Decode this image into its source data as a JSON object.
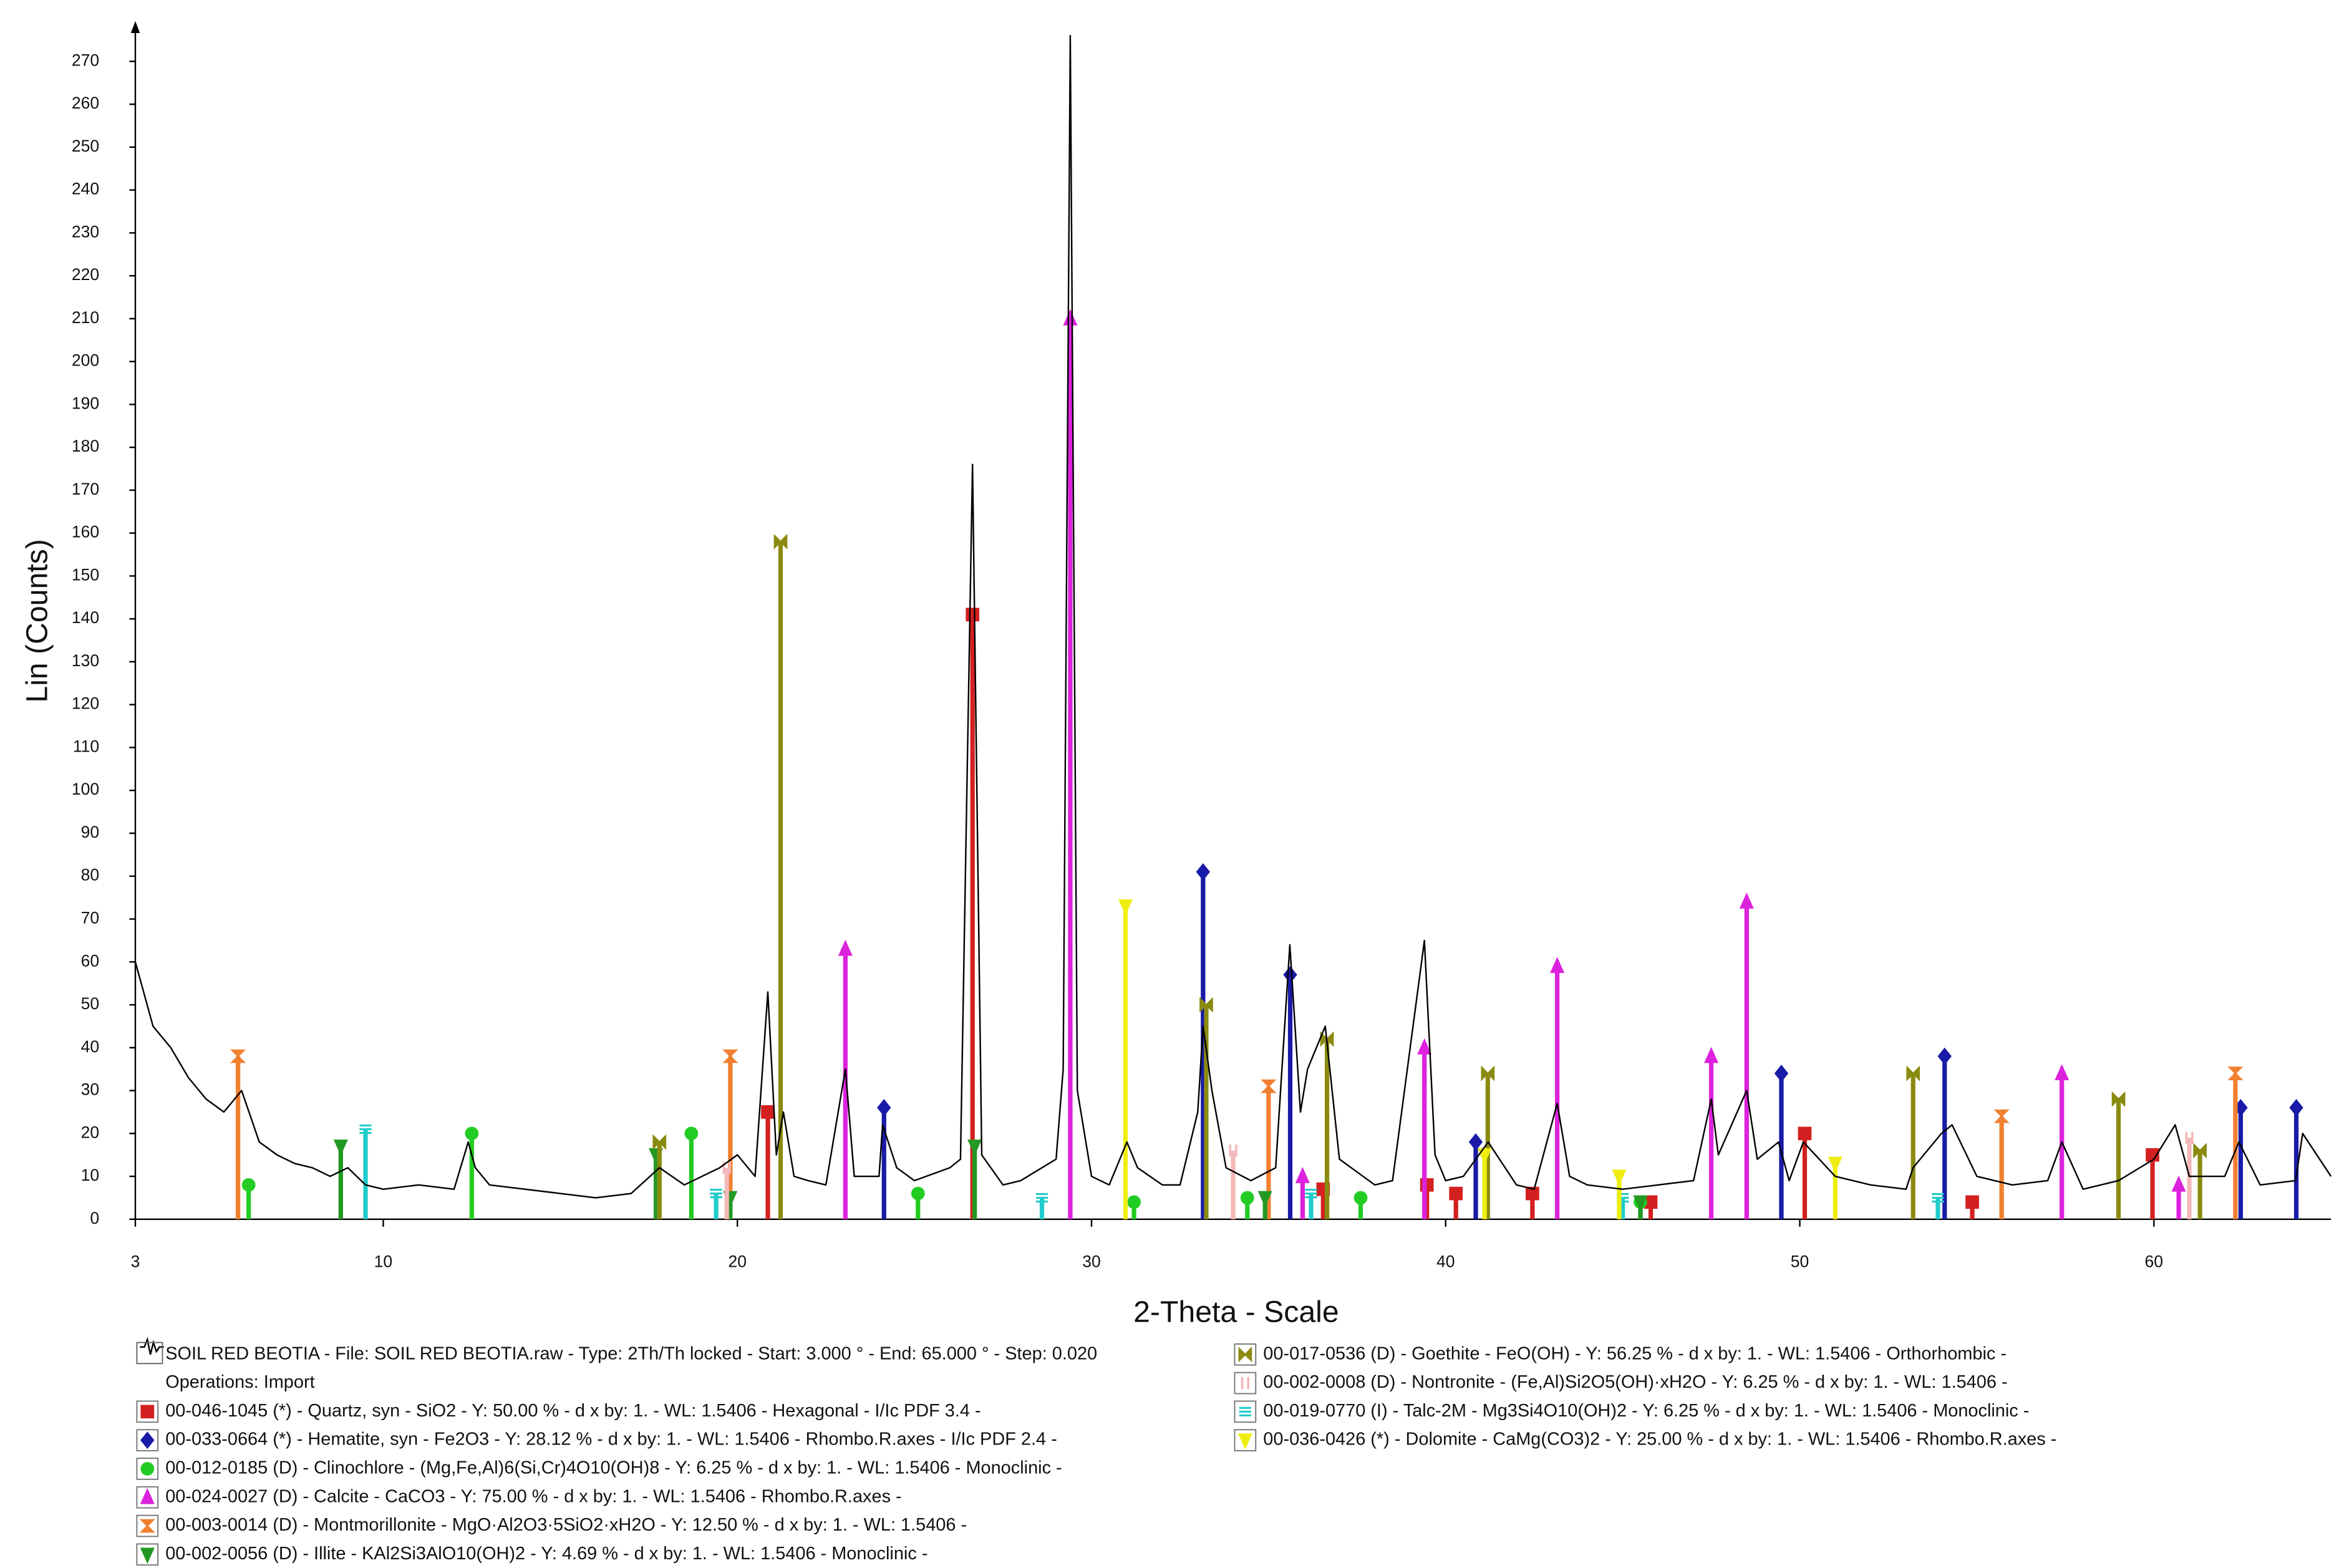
{
  "chart_data": {
    "type": "line",
    "x_label": "2-Theta - Scale",
    "y_label": "Lin (Counts)",
    "xlim": [
      3,
      65
    ],
    "ylim": [
      0,
      278
    ],
    "xticks": [
      3,
      10,
      20,
      30,
      40,
      50,
      60
    ],
    "yticks": [
      0,
      10,
      20,
      30,
      40,
      50,
      60,
      70,
      80,
      90,
      100,
      110,
      120,
      130,
      140,
      150,
      160,
      170,
      180,
      190,
      200,
      210,
      220,
      230,
      240,
      250,
      260,
      270
    ],
    "pattern": {
      "name": "SOIL RED BEOTIA - File: SOIL RED BEOTIA.raw - Type: 2Th/Th locked - Start: 3.000 ° - End: 65.000 ° - Step: 0.020",
      "note": "Operations: Import",
      "color": "#000000",
      "x": [
        3,
        3.5,
        4,
        4.5,
        5,
        5.5,
        6,
        6.5,
        7,
        7.5,
        8,
        8.5,
        9,
        9.5,
        10,
        11,
        12,
        12.4,
        12.6,
        13,
        14,
        15,
        16,
        17,
        17.8,
        18.5,
        19.5,
        20,
        20.5,
        20.86,
        21.1,
        21.3,
        21.6,
        22,
        22.5,
        23.05,
        23.3,
        24,
        24.1,
        24.5,
        25,
        26,
        26.3,
        26.64,
        26.9,
        27.5,
        28,
        29,
        29.2,
        29.4,
        29.6,
        30,
        30.5,
        31,
        31.3,
        32,
        32.5,
        33,
        33.15,
        33.4,
        33.8,
        34.5,
        35.2,
        35.6,
        35.9,
        36.1,
        36.6,
        37,
        38,
        38.5,
        39.4,
        39.7,
        40,
        40.5,
        41.2,
        42,
        42.5,
        43.15,
        43.5,
        44,
        45,
        46,
        47,
        47.5,
        47.7,
        48.5,
        48.8,
        49.4,
        49.7,
        50.1,
        51,
        52,
        53,
        53.2,
        54,
        54.3,
        55,
        56,
        57,
        57.4,
        58,
        59,
        60,
        60.6,
        61,
        62,
        62.4,
        63,
        64,
        64.2,
        65
      ],
      "values": [
        60,
        45,
        40,
        33,
        28,
        25,
        30,
        18,
        15,
        13,
        12,
        10,
        12,
        8,
        7,
        8,
        7,
        18,
        12,
        8,
        7,
        6,
        5,
        6,
        12,
        8,
        12,
        15,
        10,
        53,
        15,
        25,
        10,
        9,
        8,
        35,
        10,
        10,
        22,
        12,
        9,
        12,
        14,
        176,
        15,
        8,
        9,
        14,
        35,
        276,
        30,
        10,
        8,
        18,
        12,
        8,
        8,
        25,
        45,
        30,
        12,
        9,
        12,
        64,
        25,
        35,
        45,
        14,
        8,
        9,
        65,
        15,
        9,
        10,
        18,
        8,
        7,
        27,
        10,
        8,
        7,
        8,
        9,
        28,
        15,
        30,
        14,
        18,
        9,
        18,
        10,
        8,
        7,
        12,
        20,
        22,
        10,
        8,
        9,
        18,
        7,
        9,
        14,
        22,
        10,
        10,
        18,
        8,
        9,
        20,
        10
      ]
    },
    "series": [
      {
        "name": "00-046-1045 (*) - Quartz, syn - SiO2 - Y: 50.00 % - d x by: 1. - WL: 1.5406 - Hexagonal - I/Ic PDF 3.4 -",
        "color": "#d42020",
        "marker": "square",
        "x": [
          20.86,
          26.64,
          36.54,
          39.47,
          40.29,
          42.45,
          45.79,
          50.14,
          54.87,
          59.96
        ],
        "values": [
          25,
          141,
          7,
          8,
          6,
          6,
          4,
          20,
          4,
          15
        ]
      },
      {
        "name": "00-033-0664 (*) - Hematite, syn - Fe2O3 - Y: 28.12 % - d x by: 1. - WL: 1.5406 - Rhombo.R.axes - I/Ic PDF 2.4 -",
        "color": "#1a1aa8",
        "marker": "diamond",
        "x": [
          24.14,
          33.15,
          35.61,
          40.85,
          49.48,
          54.09,
          62.45,
          64.02
        ],
        "values": [
          26,
          81,
          57,
          18,
          34,
          38,
          26,
          26
        ]
      },
      {
        "name": "00-012-0185 (D) - Clinochlore - (Mg,Fe,Al)6(Si,Cr)4O10(OH)8 - Y: 6.25 % - d x by: 1. - WL: 1.5406 - Monoclinic -",
        "color": "#22cc22",
        "marker": "circle",
        "x": [
          6.2,
          12.5,
          18.7,
          25.1,
          31.2,
          34.4,
          37.6,
          45.5
        ],
        "values": [
          8,
          20,
          20,
          6,
          4,
          5,
          5,
          4
        ]
      },
      {
        "name": "00-024-0027 (D) - Calcite - CaCO3 - Y: 75.00 % - d x by: 1. - WL: 1.5406 - Rhombo.R.axes -",
        "color": "#dd22dd",
        "marker": "triangle-up",
        "x": [
          23.05,
          29.4,
          35.96,
          39.4,
          43.15,
          47.5,
          48.5,
          57.4,
          60.7
        ],
        "values": [
          63,
          210,
          10,
          40,
          59,
          38,
          74,
          34,
          8
        ]
      },
      {
        "name": "00-003-0014 (D) - Montmorillonite - MgO·Al2O3·5SiO2·xH2O - Y: 12.50 % - d x by: 1. - WL: 1.5406 -",
        "color": "#f08030",
        "marker": "hourglass",
        "x": [
          5.9,
          19.8,
          35.0,
          55.7,
          62.3
        ],
        "values": [
          38,
          38,
          31,
          24,
          34
        ]
      },
      {
        "name": "00-002-0056 (D) - Illite - KAl2Si3AlO10(OH)2 - Y: 4.69 % - d x by: 1. - WL: 1.5406 - Monoclinic -",
        "color": "#229922",
        "marker": "triangle-down",
        "x": [
          8.8,
          17.7,
          19.8,
          26.7,
          34.9,
          45.5
        ],
        "values": [
          17,
          15,
          5,
          17,
          5,
          4
        ]
      },
      {
        "name": "00-017-0536 (D) - Goethite - FeO(OH) - Y: 56.25 % - d x by: 1. - WL: 1.5406 - Orthorhombic -",
        "color": "#8a8a10",
        "marker": "bowtie",
        "x": [
          17.8,
          21.22,
          33.24,
          36.65,
          41.19,
          53.2,
          59.0,
          61.3
        ],
        "values": [
          18,
          158,
          50,
          42,
          34,
          34,
          28,
          16
        ]
      },
      {
        "name": "00-002-0008 (D) - Nontronite - (Fe,Al)Si2O5(OH)·xH2O - Y: 6.25 % - d x by: 1. - WL: 1.5406 -",
        "color": "#f4b8b8",
        "marker": "pair",
        "x": [
          19.7,
          34.0,
          61.0
        ],
        "values": [
          12,
          16,
          19
        ]
      },
      {
        "name": "00-019-0770 (I) - Talc-2M - Mg3Si4O10(OH)2 - Y: 6.25 % - d x by: 1. - WL: 1.5406 - Monoclinic -",
        "color": "#22cccc",
        "marker": "equals",
        "x": [
          9.5,
          19.4,
          28.6,
          36.2,
          45.0,
          53.9
        ],
        "values": [
          21,
          6,
          5,
          6,
          5,
          5
        ]
      },
      {
        "name": "00-036-0426 (*) - Dolomite - CaMg(CO3)2 - Y: 25.00 % - d x by: 1. - WL: 1.5406 - Rhombo.R.axes -",
        "color": "#eeee10",
        "marker": "triangle-down",
        "x": [
          30.96,
          41.1,
          44.9,
          51.0
        ],
        "values": [
          73,
          15,
          10,
          13
        ]
      }
    ]
  }
}
